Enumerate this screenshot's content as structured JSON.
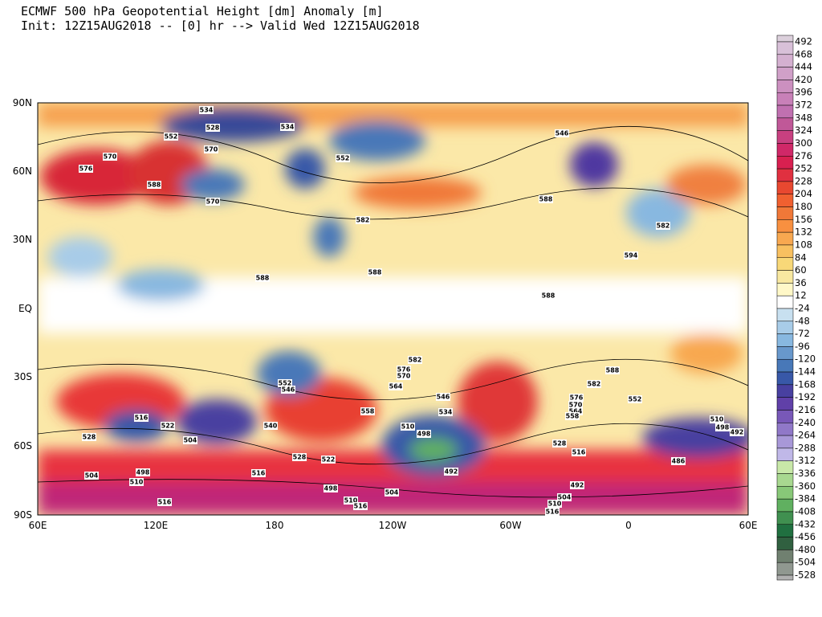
{
  "title": {
    "line1": "ECMWF 500 hPa Geopotential Height [dm] Anomaly [m]",
    "line2": "Init: 12Z15AUG2018 -- [0] hr --> Valid Wed 12Z15AUG2018"
  },
  "map": {
    "lon_labels": [
      "60E",
      "120E",
      "180",
      "120W",
      "60W",
      "0",
      "60E"
    ],
    "lat_labels": [
      "90N",
      "60N",
      "30N",
      "EQ",
      "30S",
      "60S",
      "90S"
    ],
    "contour_labels": [
      534,
      528,
      552,
      570,
      576,
      570,
      588,
      570,
      552,
      534,
      546,
      582,
      588,
      588,
      594,
      588,
      588,
      582,
      582,
      576,
      570,
      564,
      552,
      546,
      540,
      558,
      510,
      498,
      492,
      528,
      504,
      522,
      516,
      504,
      498,
      510,
      516,
      516,
      528,
      522,
      498,
      504,
      510,
      516,
      528,
      516,
      492,
      504,
      510,
      516,
      576,
      570,
      564,
      558,
      582,
      588,
      552,
      486,
      510,
      498,
      492,
      534,
      546
    ]
  },
  "colorbar": {
    "labels": [
      492,
      468,
      444,
      420,
      396,
      372,
      348,
      324,
      300,
      276,
      252,
      228,
      204,
      180,
      156,
      132,
      108,
      84,
      60,
      36,
      12,
      -24,
      -48,
      -72,
      -96,
      -120,
      -144,
      -168,
      -192,
      -216,
      -240,
      -264,
      -288,
      -312,
      -336,
      -360,
      -384,
      -408,
      -432,
      -456,
      -480,
      -504,
      -528
    ],
    "colors": [
      "#dcd0dc",
      "#d8c0d8",
      "#d4b0d0",
      "#d0a0c8",
      "#cc90c0",
      "#c880b8",
      "#c070b0",
      "#c05898",
      "#c84080",
      "#d02868",
      "#d82050",
      "#e03040",
      "#e84830",
      "#f06030",
      "#f07838",
      "#f89040",
      "#f8a850",
      "#f8c060",
      "#f8d878",
      "#f8e8a0",
      "#fff8c8",
      "#ffffff",
      "#c8e0f0",
      "#a8cce8",
      "#88b8e0",
      "#6898cc",
      "#4878b8",
      "#3858a8",
      "#4840a0",
      "#6040a8",
      "#7858b8",
      "#9078c8",
      "#a898d8",
      "#c0b8e8",
      "#c8e8a8",
      "#a8d890",
      "#88c878",
      "#60b060",
      "#409050",
      "#207040",
      "#306040",
      "#708070",
      "#909890",
      "#b0b0b0"
    ]
  }
}
